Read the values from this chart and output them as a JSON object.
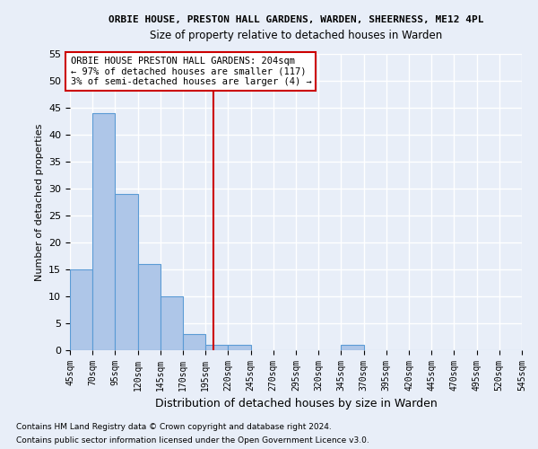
{
  "title": "ORBIE HOUSE, PRESTON HALL GARDENS, WARDEN, SHEERNESS, ME12 4PL",
  "subtitle": "Size of property relative to detached houses in Warden",
  "xlabel": "Distribution of detached houses by size in Warden",
  "ylabel": "Number of detached properties",
  "footnote1": "Contains HM Land Registry data © Crown copyright and database right 2024.",
  "footnote2": "Contains public sector information licensed under the Open Government Licence v3.0.",
  "bin_edges": [
    45,
    70,
    95,
    120,
    145,
    170,
    195,
    220,
    245,
    270,
    295,
    320,
    345,
    370,
    395,
    420,
    445,
    470,
    495,
    520,
    545
  ],
  "counts": [
    15,
    44,
    29,
    16,
    10,
    3,
    1,
    1,
    0,
    0,
    0,
    0,
    1,
    0,
    0,
    0,
    0,
    0,
    0,
    0
  ],
  "bar_color": "#aec6e8",
  "bar_edge_color": "#5b9bd5",
  "vline_x": 204,
  "vline_color": "#cc0000",
  "annotation_line1": "ORBIE HOUSE PRESTON HALL GARDENS: 204sqm",
  "annotation_line2": "← 97% of detached houses are smaller (117)",
  "annotation_line3": "3% of semi-detached houses are larger (4) →",
  "ylim": [
    0,
    55
  ],
  "yticks": [
    0,
    5,
    10,
    15,
    20,
    25,
    30,
    35,
    40,
    45,
    50,
    55
  ],
  "bg_color": "#e8eef8",
  "grid_color": "#ffffff"
}
